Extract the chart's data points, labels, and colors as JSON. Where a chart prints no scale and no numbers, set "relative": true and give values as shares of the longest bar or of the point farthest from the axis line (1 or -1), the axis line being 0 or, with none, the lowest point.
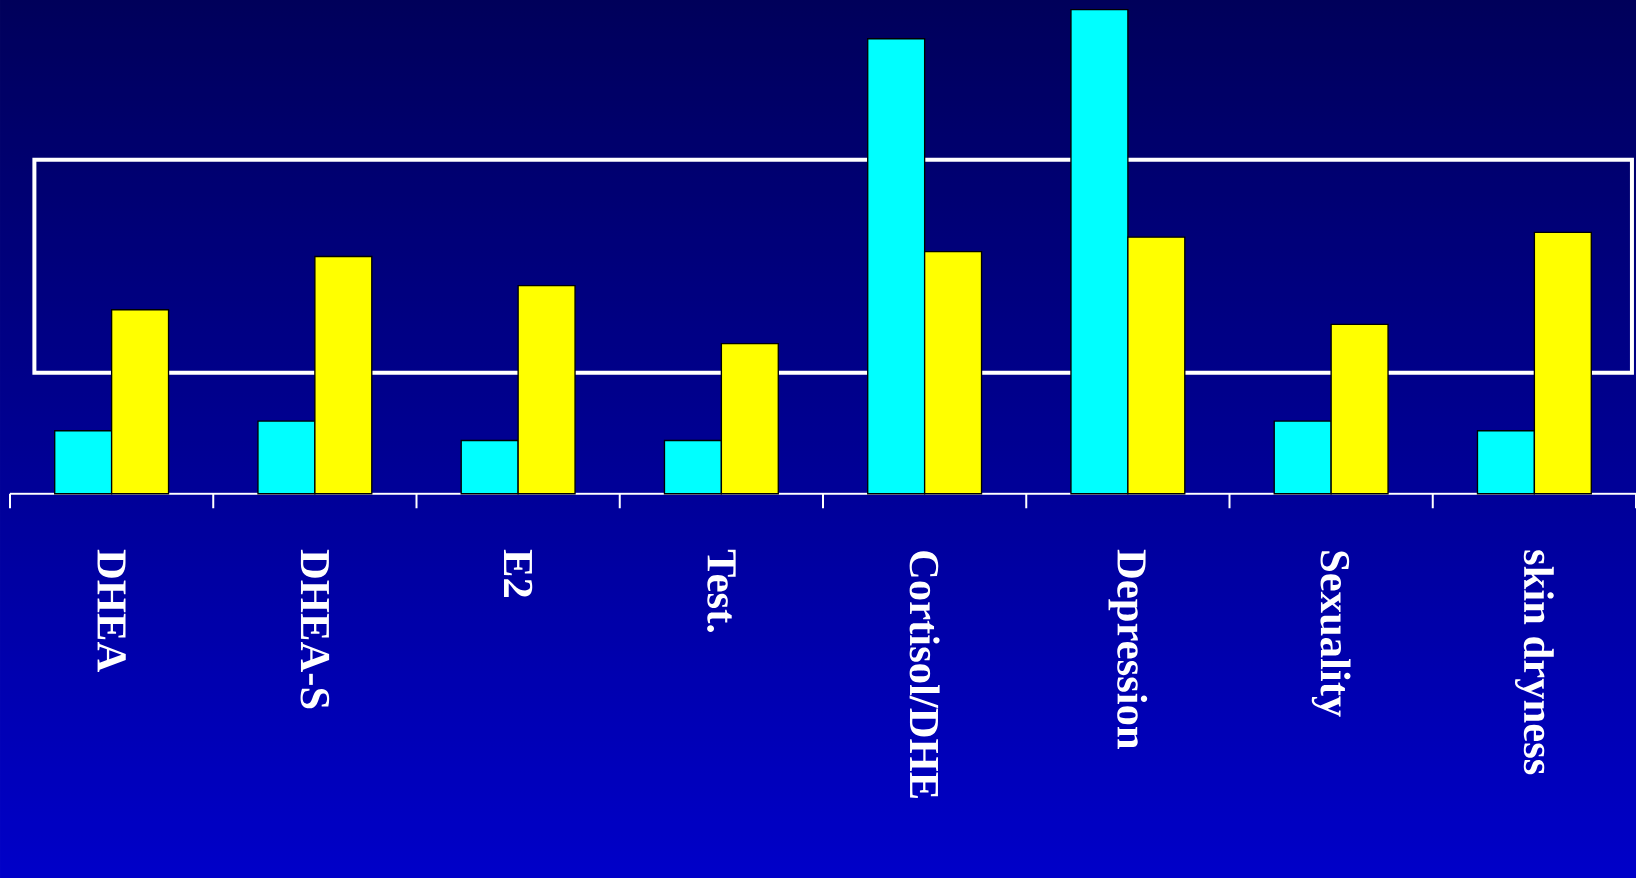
{
  "chart_data": {
    "type": "bar",
    "relative": true,
    "categories": [
      "DHEA",
      "DHEA-S",
      "E2",
      "Test.",
      "Cortisol/DHE",
      "Depression",
      "Sexuality",
      "skin dryness"
    ],
    "series": [
      {
        "color": "#00ffff",
        "values": [
          0.13,
          0.15,
          0.11,
          0.11,
          0.94,
          1,
          0.15,
          0.13
        ]
      },
      {
        "color": "#ffff00",
        "values": [
          0.38,
          0.49,
          0.43,
          0.31,
          0.5,
          0.53,
          0.35,
          0.54
        ]
      }
    ]
  }
}
